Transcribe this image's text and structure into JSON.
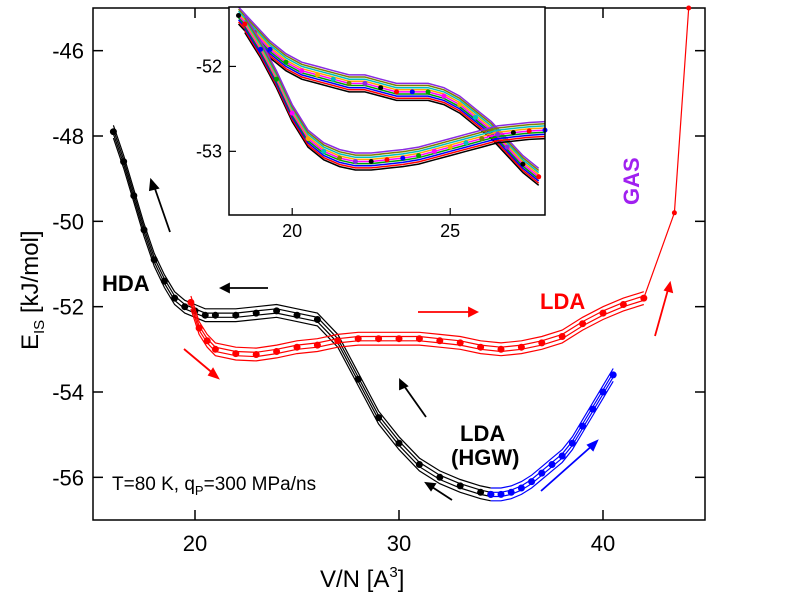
{
  "chart_data": {
    "type": "scatter",
    "axes": {
      "x_label_main": "V/N [A",
      "x_label_sup": "3",
      "x_label_close": "]",
      "y_label_main": "E",
      "y_label_sub": "IS",
      "y_label_rest": " [kJ/mol]",
      "xlim": [
        15,
        45
      ],
      "ylim": [
        -57,
        -45
      ],
      "xticks": [
        20,
        30,
        40
      ],
      "yticks": [
        -46,
        -48,
        -50,
        -52,
        -54,
        -56
      ],
      "xtick_labels": [
        "20",
        "30",
        "40"
      ],
      "ytick_labels": [
        "-46",
        "-48",
        "-50",
        "-52",
        "-54",
        "-56"
      ]
    },
    "annotations": {
      "hda": "HDA",
      "lda": "LDA",
      "lda_hgw_line1": "LDA",
      "lda_hgw_line2": "(HGW)",
      "gas": "GAS",
      "condition_a": "T=80 K, q",
      "condition_sub": "P",
      "condition_b": "=300 MPa/ns"
    },
    "colors": {
      "compression_hda": "#000000",
      "decompression_lda": "#ff0000",
      "lda_hgw": "#0000ff",
      "gas": "#a020f0"
    },
    "series": [
      {
        "name": "HDA compression (black)",
        "color": "#000000",
        "x": [
          16.0,
          16.5,
          17.0,
          17.5,
          18.0,
          18.5,
          19.0,
          19.5,
          20.0,
          20.5,
          21.0,
          22.0,
          23.0,
          24.0,
          25.0,
          26.0,
          27.0,
          28.0,
          29.0,
          30.0,
          31.0,
          32.0,
          33.0,
          34.0,
          34.5
        ],
        "y": [
          -47.9,
          -48.6,
          -49.4,
          -50.2,
          -50.9,
          -51.4,
          -51.8,
          -52.0,
          -52.1,
          -52.2,
          -52.2,
          -52.2,
          -52.15,
          -52.1,
          -52.2,
          -52.3,
          -52.8,
          -53.7,
          -54.6,
          -55.2,
          -55.7,
          -56.0,
          -56.2,
          -56.35,
          -56.4
        ]
      },
      {
        "name": "LDA decompression (red)",
        "color": "#ff0000",
        "x": [
          19.8,
          20.2,
          20.6,
          21.0,
          22.0,
          23.0,
          24.0,
          25.0,
          26.0,
          27.0,
          28.0,
          29.0,
          30.0,
          31.0,
          32.0,
          33.0,
          34.0,
          35.0,
          36.0,
          37.0,
          38.0,
          39.0,
          40.0,
          41.0,
          42.0
        ],
        "y": [
          -51.9,
          -52.5,
          -52.8,
          -53.0,
          -53.1,
          -53.12,
          -53.05,
          -52.95,
          -52.9,
          -52.8,
          -52.75,
          -52.75,
          -52.75,
          -52.75,
          -52.8,
          -52.85,
          -52.95,
          -53.0,
          -52.95,
          -52.85,
          -52.7,
          -52.4,
          -52.15,
          -51.95,
          -51.8
        ]
      },
      {
        "name": "LDA (HGW) (blue)",
        "color": "#0000ff",
        "x": [
          34.5,
          35.0,
          35.5,
          36.0,
          36.5,
          37.0,
          37.5,
          38.0,
          38.5,
          39.0,
          39.5,
          40.0,
          40.5
        ],
        "y": [
          -56.4,
          -56.4,
          -56.35,
          -56.25,
          -56.1,
          -55.9,
          -55.7,
          -55.5,
          -55.2,
          -54.8,
          -54.4,
          -54.0,
          -53.6
        ]
      },
      {
        "name": "Gas branch (red)",
        "color": "#ff0000",
        "x": [
          42.0,
          43.5,
          44.2
        ],
        "y": [
          -51.8,
          -49.8,
          -45.0
        ]
      }
    ],
    "inset": {
      "xlim": [
        18,
        28
      ],
      "ylim": [
        -53.75,
        -51.3
      ],
      "xticks": [
        20,
        25
      ],
      "yticks": [
        -52,
        -53
      ],
      "xtick_labels": [
        "20",
        "25"
      ],
      "ytick_labels": [
        "-52",
        "-53"
      ],
      "series": [
        {
          "name": "upper branch",
          "color": "#000000",
          "x": [
            18.3,
            18.8,
            19.3,
            19.8,
            20.3,
            20.8,
            21.3,
            21.8,
            22.3,
            22.8,
            23.3,
            23.8,
            24.3,
            24.8,
            25.3,
            25.8,
            26.3,
            26.8,
            27.3,
            27.8
          ],
          "y": [
            -51.4,
            -51.6,
            -51.8,
            -51.95,
            -52.05,
            -52.1,
            -52.15,
            -52.2,
            -52.2,
            -52.25,
            -52.3,
            -52.3,
            -52.3,
            -52.35,
            -52.45,
            -52.6,
            -52.75,
            -52.95,
            -53.15,
            -53.3
          ]
        },
        {
          "name": "lower branch",
          "color": "#000000",
          "x": [
            18.5,
            19.0,
            19.5,
            20.0,
            20.5,
            21.0,
            21.5,
            22.0,
            22.5,
            23.0,
            23.5,
            24.0,
            24.5,
            25.0,
            25.5,
            26.0,
            26.5,
            27.0,
            27.5,
            28.0
          ],
          "y": [
            -51.5,
            -51.8,
            -52.15,
            -52.55,
            -52.85,
            -53.0,
            -53.08,
            -53.12,
            -53.12,
            -53.1,
            -53.08,
            -53.05,
            -53.0,
            -52.95,
            -52.9,
            -52.85,
            -52.8,
            -52.78,
            -52.76,
            -52.75
          ]
        }
      ]
    }
  }
}
